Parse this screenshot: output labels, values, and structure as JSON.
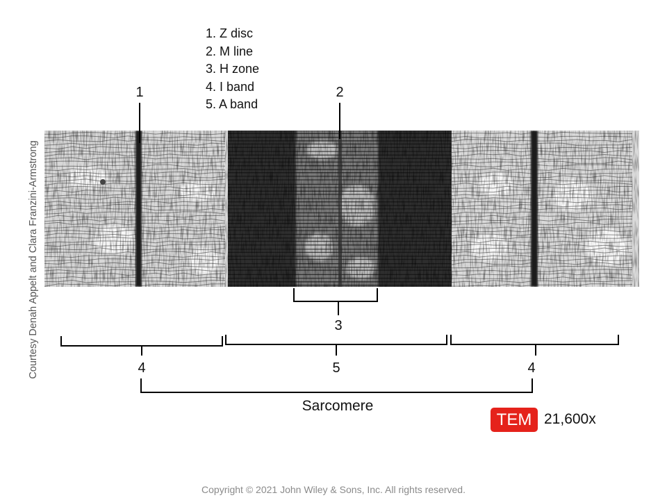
{
  "legend": [
    {
      "number": "1",
      "text": "1. Z disc"
    },
    {
      "number": "2",
      "text": "2. M line"
    },
    {
      "number": "3",
      "text": "3. H zone"
    },
    {
      "number": "4",
      "text": "4. I band"
    },
    {
      "number": "5",
      "text": "5. A band"
    }
  ],
  "labels": {
    "z_disc": "1",
    "m_line": "2",
    "h_zone": "3",
    "i_band_left": "4",
    "a_band": "5",
    "i_band_right": "4",
    "sarcomere": "Sarcomere"
  },
  "credit": "Courtesy Denah Appelt and Clara Franzini-Armstrong",
  "badge": {
    "text": "TEM",
    "color": "#e5221b"
  },
  "magnification": "21,600x",
  "copyright": "Copyright © 2021 John Wiley & Sons, Inc. All rights reserved."
}
